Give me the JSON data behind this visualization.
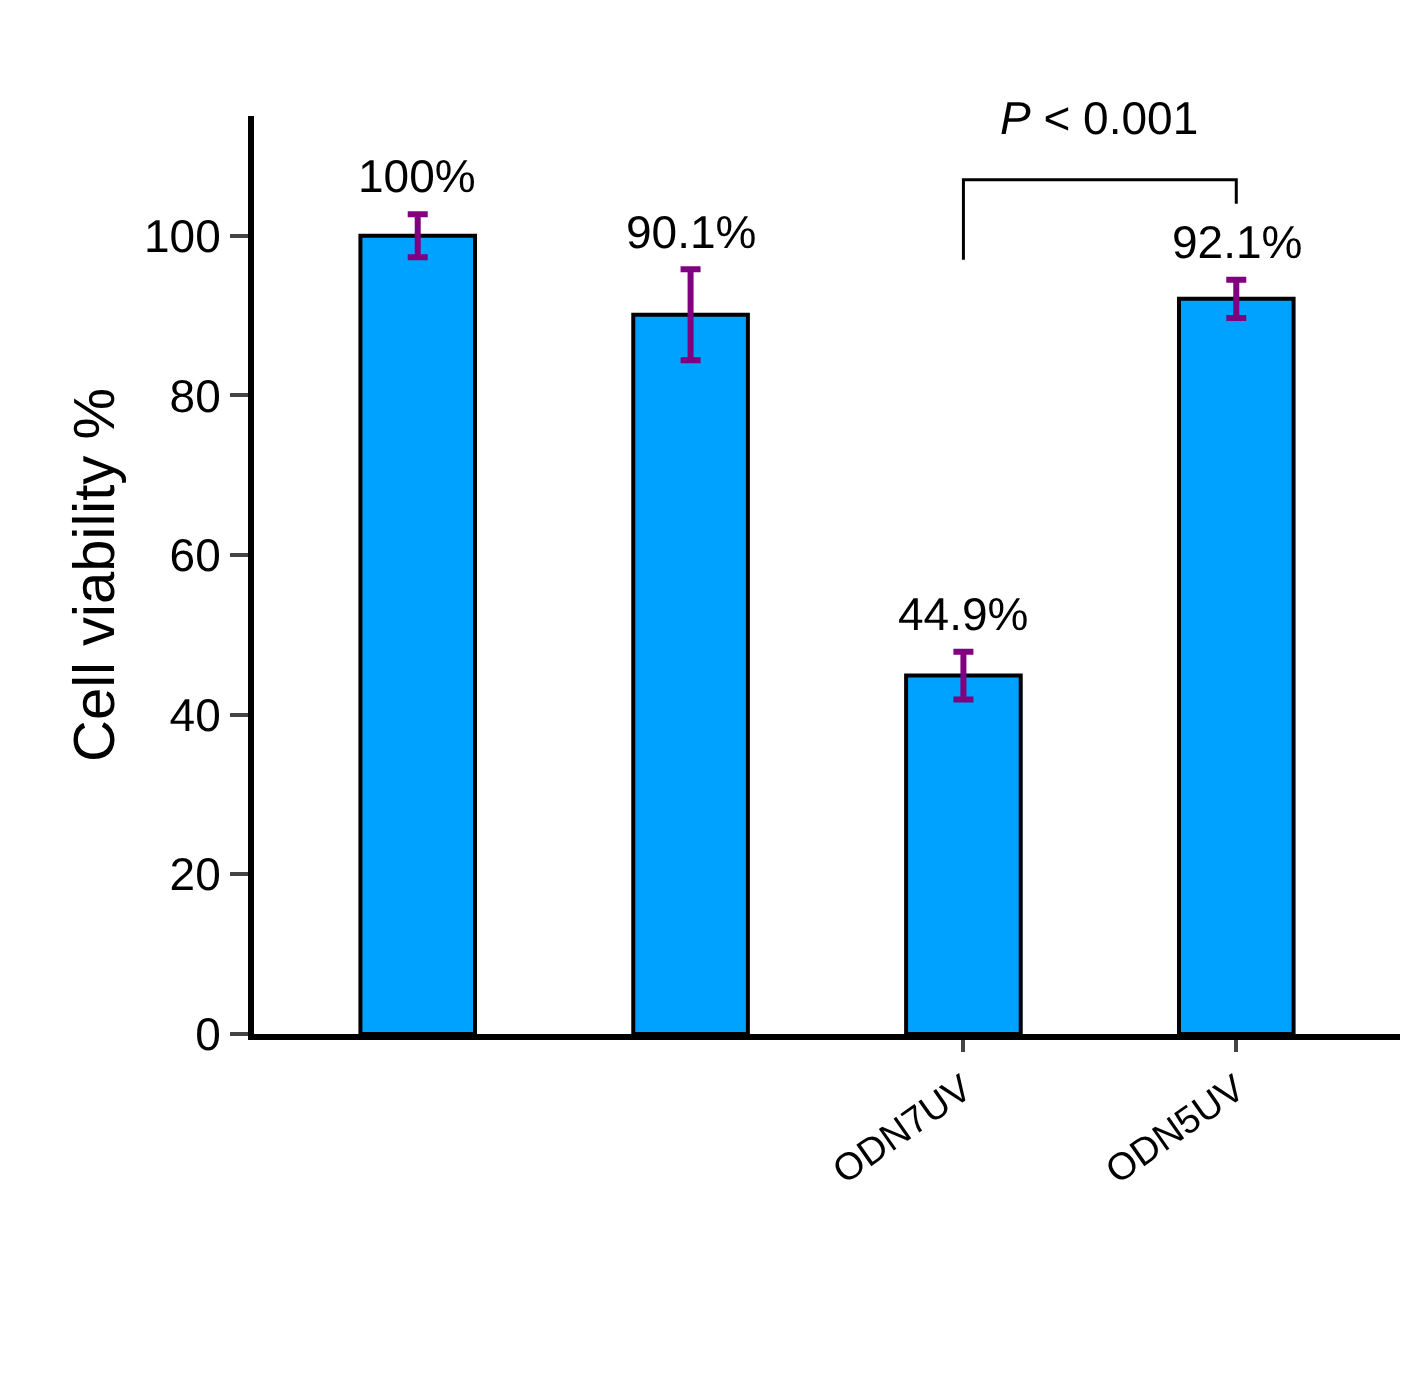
{
  "chart_data": {
    "type": "bar",
    "ylabel": "Cell viability %",
    "categories": [
      null,
      null,
      "ODN7UV",
      "ODN5UV"
    ],
    "values": [
      100,
      90.1,
      44.9,
      92.1
    ],
    "value_labels": [
      "100%",
      "90.1%",
      "44.9%",
      "92.1%"
    ],
    "errors": [
      2.7,
      5.7,
      3,
      2.4
    ],
    "color": "#00a2ff",
    "ylim": [
      0,
      115
    ],
    "yticks": [
      0,
      20,
      40,
      60,
      80,
      100
    ],
    "grid": false,
    "annotations": [
      "P < 0.001"
    ]
  }
}
